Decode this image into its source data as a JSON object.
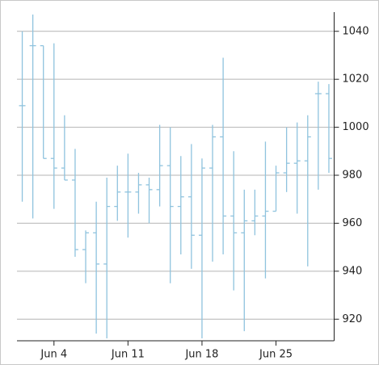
{
  "chart_data": {
    "type": "ohlc",
    "categories": [
      null,
      null,
      null,
      "Jun 4",
      null,
      null,
      null,
      null,
      null,
      null,
      "Jun 11",
      null,
      null,
      null,
      null,
      null,
      null,
      "Jun 18",
      null,
      null,
      null,
      null,
      null,
      null,
      "Jun 25",
      null,
      null,
      null,
      null,
      null
    ],
    "series": [
      {
        "color": "#8fc3de",
        "open": [
          1009,
          1034,
          1034,
          987,
          983,
          978,
          949,
          956,
          943,
          967,
          973,
          973,
          976,
          974,
          984,
          967,
          971,
          955,
          983,
          996,
          963,
          956,
          961,
          963,
          965,
          981,
          985,
          986,
          1014,
          1014
        ],
        "high": [
          1040,
          1047,
          1034,
          1035,
          1005,
          991,
          957,
          969,
          979,
          984,
          989,
          981,
          979,
          1001,
          1000,
          988,
          993,
          987,
          1001,
          1029,
          990,
          974,
          974,
          994,
          984,
          1000,
          1002,
          1005,
          1019,
          1018
        ],
        "low": [
          969,
          962,
          987,
          966,
          978,
          946,
          935,
          914,
          912,
          961,
          954,
          964,
          960,
          967,
          935,
          947,
          941,
          912,
          944,
          947,
          932,
          915,
          955,
          937,
          965,
          973,
          964,
          942,
          974,
          981
        ],
        "close": [
          1009,
          1034,
          987,
          983,
          978,
          949,
          956,
          943,
          967,
          973,
          973,
          976,
          974,
          984,
          967,
          971,
          955,
          983,
          996,
          963,
          956,
          961,
          963,
          965,
          981,
          985,
          986,
          996,
          1014,
          987
        ]
      }
    ],
    "ylim": [
      911,
      1048
    ],
    "yticks": [
      920,
      940,
      960,
      980,
      1000,
      1020,
      1040
    ],
    "grid": true
  }
}
